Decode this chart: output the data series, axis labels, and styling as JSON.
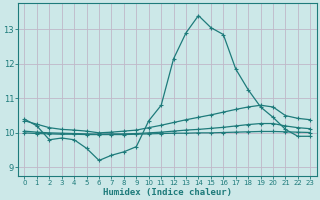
{
  "xlabel": "Humidex (Indice chaleur)",
  "x_values": [
    0,
    1,
    2,
    3,
    4,
    5,
    6,
    7,
    8,
    9,
    10,
    11,
    12,
    13,
    14,
    15,
    16,
    17,
    18,
    19,
    20,
    21,
    22,
    23
  ],
  "line1_y": [
    10.4,
    10.2,
    9.8,
    9.85,
    9.8,
    9.55,
    9.2,
    9.35,
    9.45,
    9.6,
    10.35,
    10.8,
    12.15,
    12.9,
    13.4,
    13.05,
    12.85,
    11.85,
    11.25,
    10.75,
    10.45,
    10.1,
    9.9,
    9.9
  ],
  "line2_y": [
    10.35,
    10.25,
    10.15,
    10.1,
    10.08,
    10.05,
    10.0,
    10.02,
    10.05,
    10.08,
    10.15,
    10.22,
    10.3,
    10.38,
    10.45,
    10.52,
    10.6,
    10.68,
    10.75,
    10.8,
    10.75,
    10.5,
    10.42,
    10.38
  ],
  "line3_y": [
    10.05,
    10.02,
    10.0,
    9.99,
    9.98,
    9.97,
    9.96,
    9.97,
    9.97,
    9.98,
    10.0,
    10.02,
    10.05,
    10.08,
    10.1,
    10.13,
    10.16,
    10.2,
    10.24,
    10.27,
    10.27,
    10.2,
    10.15,
    10.12
  ],
  "line4_y": [
    10.0,
    9.98,
    9.97,
    9.96,
    9.96,
    9.95,
    9.95,
    9.95,
    9.95,
    9.96,
    9.97,
    9.98,
    9.99,
    9.99,
    10.0,
    10.0,
    10.01,
    10.02,
    10.03,
    10.04,
    10.04,
    10.03,
    10.02,
    10.01
  ],
  "line_color": "#1e7b7b",
  "bg_color": "#cce8e8",
  "grid_color": "#c0b8c8",
  "axis_color": "#1e7b7b",
  "ylim": [
    8.75,
    13.75
  ],
  "xlim": [
    -0.5,
    23.5
  ],
  "yticks": [
    9,
    10,
    11,
    12,
    13
  ],
  "xticks": [
    0,
    1,
    2,
    3,
    4,
    5,
    6,
    7,
    8,
    9,
    10,
    11,
    12,
    13,
    14,
    15,
    16,
    17,
    18,
    19,
    20,
    21,
    22,
    23
  ]
}
